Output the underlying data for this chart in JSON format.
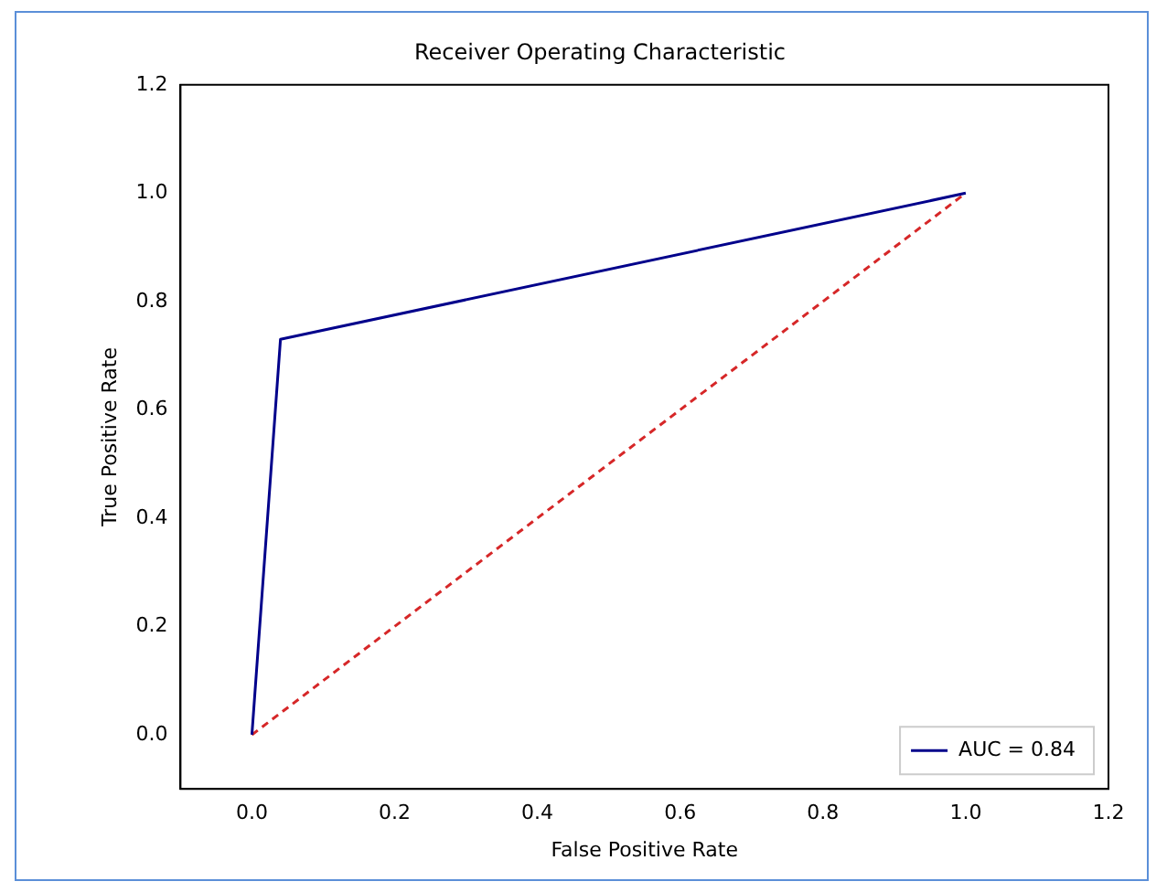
{
  "chart_data": {
    "type": "line",
    "title": "Receiver Operating Characteristic",
    "xlabel": "False Positive Rate",
    "ylabel": "True Positive Rate",
    "xlim": [
      -0.1,
      1.2
    ],
    "ylim": [
      -0.1,
      1.2
    ],
    "xticks": [
      {
        "value": 0,
        "label": "0.0"
      },
      0.2,
      0.4,
      0.6,
      0.8,
      {
        "value": 1,
        "label": "1.0"
      },
      1.2
    ],
    "yticks": [
      {
        "value": 0,
        "label": "0.0"
      },
      0.2,
      0.4,
      0.6,
      0.8,
      {
        "value": 1,
        "label": "1.0"
      },
      1.2
    ],
    "series": [
      {
        "name": "AUC = 0.84",
        "color": "#00008b",
        "x": [
          0,
          0.04,
          1
        ],
        "values": [
          0,
          0.73,
          1
        ],
        "line_style": "solid"
      },
      {
        "color": "#d62728",
        "x": [
          0,
          1
        ],
        "values": [
          0,
          1
        ],
        "line_style": "dashed"
      }
    ],
    "legend": "bottom right",
    "grid": false,
    "marker": "none"
  }
}
